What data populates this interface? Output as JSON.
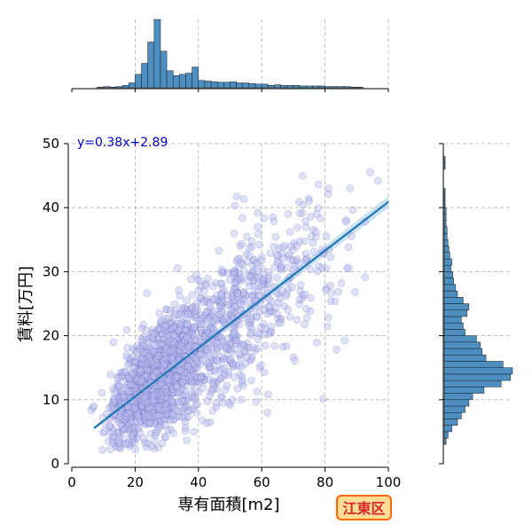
{
  "chart_data": {
    "type": "scatter",
    "title": "",
    "xlabel": "専有面積[m2]",
    "ylabel": "賃料[万円]",
    "xlim": [
      0,
      100
    ],
    "ylim": [
      0,
      50
    ],
    "xticks": [
      0,
      20,
      40,
      60,
      80,
      100
    ],
    "yticks": [
      0,
      10,
      20,
      30,
      40,
      50
    ],
    "grid": true,
    "regression": {
      "label": "y=0.38x+2.89",
      "slope": 0.38,
      "intercept": 2.89,
      "x_range": [
        7,
        100
      ]
    },
    "region_badge": "江東区",
    "scatter_description": {
      "n_points_approx": 2000,
      "x_mode": 25,
      "y_center_at_x": "regression line"
    },
    "x_histogram": {
      "bin_width": 2,
      "bin_starts": [
        8,
        10,
        12,
        14,
        16,
        18,
        20,
        22,
        24,
        26,
        28,
        30,
        32,
        34,
        36,
        38,
        40,
        42,
        44,
        46,
        48,
        50,
        52,
        54,
        56,
        58,
        60,
        62,
        64,
        66,
        68,
        70,
        72,
        74,
        76,
        78,
        80,
        82,
        84,
        86,
        88,
        90
      ],
      "counts": [
        1,
        2,
        1,
        2,
        4,
        8,
        22,
        40,
        75,
        112,
        60,
        28,
        20,
        22,
        24,
        34,
        12,
        11,
        10,
        9,
        9,
        10,
        8,
        8,
        7,
        6,
        6,
        4,
        5,
        4,
        4,
        4,
        3,
        3,
        3,
        3,
        2,
        2,
        2,
        2,
        1,
        1
      ]
    },
    "y_histogram": {
      "bin_width": 1,
      "bin_starts": [
        3,
        4,
        5,
        6,
        7,
        8,
        9,
        10,
        11,
        12,
        13,
        14,
        15,
        16,
        17,
        18,
        19,
        20,
        21,
        22,
        23,
        24,
        25,
        26,
        27,
        28,
        29,
        30,
        31,
        32,
        33,
        34,
        35,
        36,
        37,
        38,
        39,
        40,
        41,
        42,
        43,
        44,
        45,
        46,
        47
      ],
      "counts": [
        2,
        4,
        8,
        14,
        18,
        22,
        26,
        30,
        42,
        60,
        70,
        72,
        62,
        44,
        40,
        38,
        34,
        22,
        20,
        18,
        24,
        26,
        20,
        14,
        12,
        10,
        9,
        7,
        8,
        6,
        5,
        4,
        3,
        3,
        2,
        2,
        2,
        1,
        1,
        1,
        0,
        0,
        0,
        1,
        1
      ]
    },
    "colors": {
      "scatter_fill": "#b8bdea",
      "scatter_core": "#2a2ab0",
      "regression_line": "#1f77b4",
      "confidence_band": "#a9cfe8",
      "histogram_fill": "#4c8fc0",
      "histogram_edge": "#1a1a1a",
      "regression_label": "#0000cc",
      "badge_text": "#d62728",
      "badge_fill": "#fddc96",
      "badge_edge": "#ff6600",
      "grid": "#b0b0b0"
    }
  }
}
